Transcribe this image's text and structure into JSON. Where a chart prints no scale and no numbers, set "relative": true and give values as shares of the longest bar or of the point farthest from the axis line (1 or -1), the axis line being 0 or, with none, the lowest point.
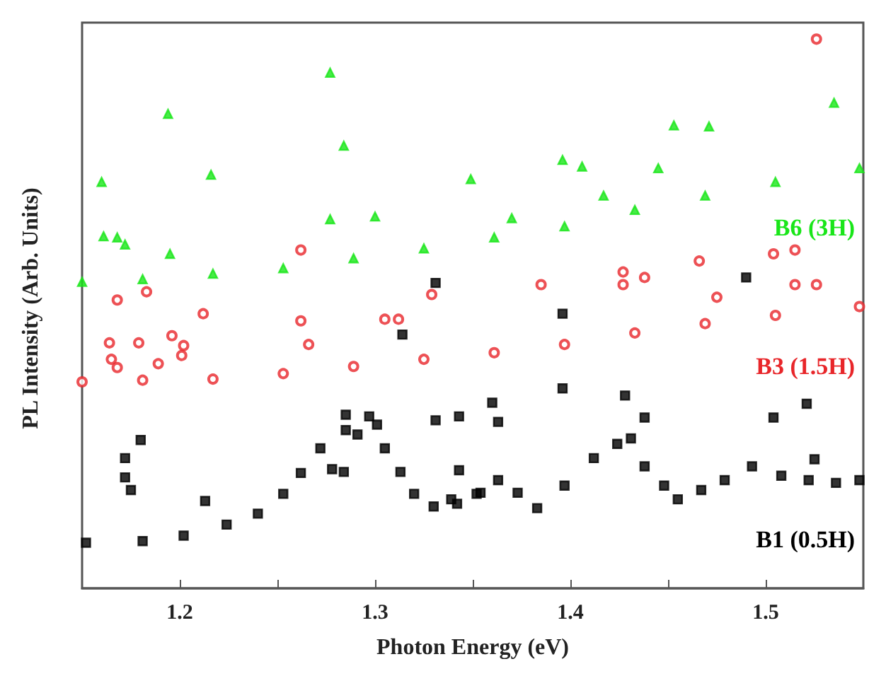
{
  "chart_data": {
    "type": "scatter",
    "xlabel": "Photon Energy (eV)",
    "ylabel": "PL Intensity (Arb. Units)",
    "relative": true,
    "xlim": [
      1.15,
      1.55
    ],
    "xticks": [
      1.2,
      {
        "value": 1.25,
        "label": null
      },
      1.3,
      {
        "value": 1.35,
        "label": null
      },
      1.4,
      {
        "value": 1.45,
        "label": null
      },
      1.5
    ],
    "grid": false,
    "legend": false,
    "series": [
      {
        "name": "B6 (3H)",
        "color": "#19e619",
        "marker": "triangle",
        "x": [
          1.15,
          1.181,
          1.217,
          1.253,
          1.289,
          1.325,
          1.361,
          1.397,
          1.433,
          1.469,
          1.505,
          1.548,
          1.16,
          1.161,
          1.168,
          1.172,
          1.194,
          1.195,
          1.216,
          1.277,
          1.284,
          1.277,
          1.3,
          1.349,
          1.396,
          1.406,
          1.445,
          1.453,
          1.471,
          1.535,
          1.37,
          1.417
        ],
        "values": [
          0.558,
          0.563,
          0.573,
          0.583,
          0.601,
          0.619,
          0.639,
          0.659,
          0.689,
          0.715,
          0.74,
          0.765,
          0.74,
          0.641,
          0.639,
          0.626,
          0.864,
          0.609,
          0.753,
          0.939,
          0.806,
          0.672,
          0.677,
          0.745,
          0.78,
          0.768,
          0.765,
          0.843,
          0.841,
          0.884,
          0.674,
          0.715
        ]
      },
      {
        "name": "B3 (1.5H)",
        "color": "#e8262a",
        "marker": "circle",
        "x": [
          1.15,
          1.181,
          1.217,
          1.253,
          1.289,
          1.325,
          1.361,
          1.397,
          1.433,
          1.469,
          1.505,
          1.548,
          1.168,
          1.183,
          1.212,
          1.262,
          1.262,
          1.305,
          1.312,
          1.329,
          1.164,
          1.179,
          1.196,
          1.202,
          1.165,
          1.168,
          1.189,
          1.201,
          1.266,
          1.526,
          1.427,
          1.427,
          1.438,
          1.466,
          1.385,
          1.504,
          1.515,
          1.515,
          1.526,
          1.475
        ],
        "values": [
          0.376,
          0.379,
          0.381,
          0.391,
          0.404,
          0.417,
          0.429,
          0.444,
          0.465,
          0.482,
          0.497,
          0.513,
          0.525,
          0.54,
          0.5,
          0.616,
          0.487,
          0.49,
          0.49,
          0.535,
          0.447,
          0.447,
          0.46,
          0.442,
          0.417,
          0.402,
          0.409,
          0.424,
          0.444,
          1,
          0.576,
          0.553,
          0.566,
          0.596,
          0.553,
          0.609,
          0.616,
          0.553,
          0.553,
          0.53
        ]
      },
      {
        "name": "B1 (0.5H)",
        "color": "#000000",
        "marker": "square",
        "x": [
          1.152,
          1.181,
          1.202,
          1.224,
          1.24,
          1.253,
          1.262,
          1.272,
          1.278,
          1.284,
          1.291,
          1.297,
          1.301,
          1.305,
          1.313,
          1.32,
          1.33,
          1.342,
          1.352,
          1.339,
          1.354,
          1.363,
          1.373,
          1.383,
          1.397,
          1.412,
          1.424,
          1.431,
          1.438,
          1.448,
          1.455,
          1.467,
          1.479,
          1.493,
          1.508,
          1.522,
          1.536,
          1.548,
          1.172,
          1.172,
          1.175,
          1.18,
          1.213,
          1.285,
          1.285,
          1.314,
          1.331,
          1.343,
          1.343,
          1.396,
          1.396,
          1.36,
          1.363,
          1.428,
          1.438,
          1.504,
          1.521,
          1.525,
          1.49,
          1.331
        ],
        "values": [
          0.083,
          0.086,
          0.096,
          0.116,
          0.136,
          0.172,
          0.21,
          0.255,
          0.217,
          0.212,
          0.28,
          0.313,
          0.298,
          0.255,
          0.212,
          0.172,
          0.149,
          0.154,
          0.172,
          0.162,
          0.174,
          0.197,
          0.174,
          0.146,
          0.187,
          0.237,
          0.263,
          0.273,
          0.222,
          0.187,
          0.162,
          0.179,
          0.197,
          0.222,
          0.205,
          0.197,
          0.192,
          0.197,
          0.237,
          0.202,
          0.179,
          0.27,
          0.159,
          0.316,
          0.288,
          0.462,
          0.306,
          0.313,
          0.215,
          0.5,
          0.364,
          0.338,
          0.303,
          0.351,
          0.311,
          0.311,
          0.336,
          0.235,
          0.566,
          0.556
        ]
      }
    ]
  }
}
